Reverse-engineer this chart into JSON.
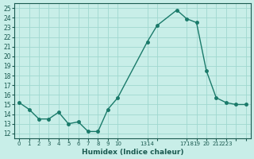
{
  "hours": [
    0,
    1,
    2,
    3,
    4,
    5,
    6,
    7,
    8,
    9,
    10,
    13,
    14,
    16,
    17,
    18,
    19,
    20,
    21,
    22,
    23
  ],
  "vals": [
    15.2,
    14.5,
    13.5,
    13.5,
    14.2,
    13.0,
    13.2,
    12.2,
    12.2,
    14.5,
    15.7,
    21.5,
    23.2,
    24.8,
    23.9,
    23.5,
    18.5,
    15.7,
    15.2,
    15.0,
    15.0
  ],
  "y_ticks": [
    12,
    13,
    14,
    15,
    16,
    17,
    18,
    19,
    20,
    21,
    22,
    23,
    24,
    25
  ],
  "ylim": [
    11.5,
    25.5
  ],
  "xlim": [
    -0.5,
    23.5
  ],
  "x_tick_positions": [
    0,
    1,
    2,
    3,
    4,
    5,
    6,
    7,
    8,
    9,
    10,
    13,
    14,
    17,
    18,
    19,
    20,
    21,
    22,
    23
  ],
  "x_tick_labels": [
    "0",
    "1",
    "2",
    "3",
    "4",
    "5",
    "6",
    "7",
    "8",
    "9",
    "10",
    "1314",
    "",
    "1718",
    "19",
    "20",
    "21",
    "2223",
    "",
    ""
  ],
  "line_color": "#1a7a6a",
  "bg_color": "#c8eee8",
  "grid_color": "#a0d8d0",
  "xlabel": "Humidex (Indice chaleur)",
  "font_color": "#1a5a50"
}
